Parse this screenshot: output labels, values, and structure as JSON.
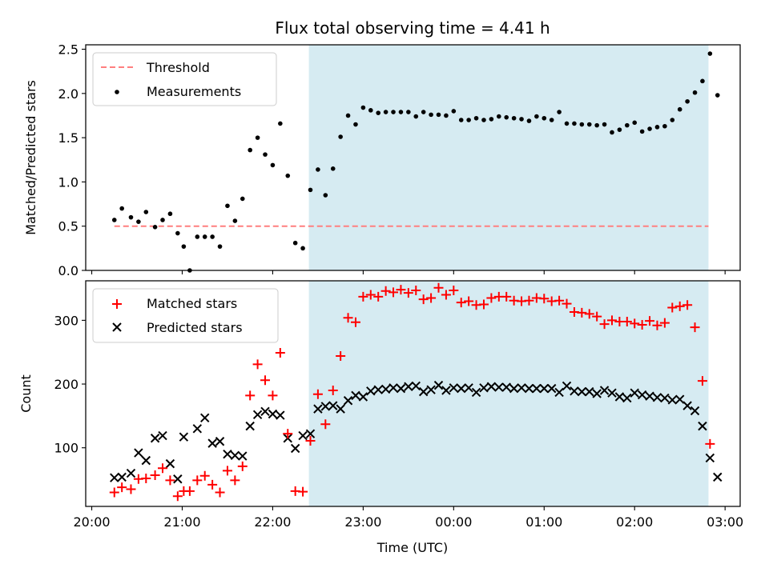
{
  "title": "Flux total observing time = 4.41 h",
  "x_axis": {
    "label": "Time (UTC)",
    "ticks": [
      "20:00",
      "21:00",
      "22:00",
      "23:00",
      "00:00",
      "01:00",
      "02:00",
      "03:00"
    ],
    "range": [
      "20:00",
      "03:10"
    ]
  },
  "top_panel": {
    "ylabel": "Matched/Predicted stars",
    "yticks": [
      "0.0",
      "0.5",
      "1.0",
      "1.5",
      "2.0",
      "2.5"
    ],
    "legend": {
      "placement": "upper-left",
      "threshold_label": "Threshold",
      "measurements_label": "Measurements"
    }
  },
  "bottom_panel": {
    "ylabel": "Count",
    "yticks": [
      "100",
      "200",
      "300"
    ],
    "legend": {
      "placement": "upper-left",
      "matched_label": "Matched stars",
      "predicted_label": "Predicted stars"
    }
  },
  "colors": {
    "threshold": "#ff7f7f",
    "measurements": "#000000",
    "matched": "#ff0000",
    "predicted": "#000000",
    "shade": "#add8e6"
  },
  "chart_data": [
    {
      "type": "scatter",
      "panel": "top",
      "ylabel": "Matched/Predicted stars",
      "ylim": [
        0,
        2.55
      ],
      "xlim": [
        "19:56",
        "03:10"
      ],
      "shaded_span": [
        "22:24",
        "02:49"
      ],
      "threshold": {
        "name": "Threshold",
        "value": 0.5,
        "x_range": [
          "20:15",
          "02:49"
        ],
        "style": "dashed"
      },
      "series": [
        {
          "name": "Measurements",
          "points": [
            [
              "20:15",
              0.57
            ],
            [
              "20:20",
              0.7
            ],
            [
              "20:26",
              0.6
            ],
            [
              "20:31",
              0.55
            ],
            [
              "20:36",
              0.66
            ],
            [
              "20:42",
              0.49
            ],
            [
              "20:47",
              0.57
            ],
            [
              "20:52",
              0.64
            ],
            [
              "20:57",
              0.42
            ],
            [
              "21:01",
              0.27
            ],
            [
              "21:05",
              0.0
            ],
            [
              "21:10",
              0.38
            ],
            [
              "21:15",
              0.38
            ],
            [
              "21:20",
              0.38
            ],
            [
              "21:25",
              0.27
            ],
            [
              "21:30",
              0.73
            ],
            [
              "21:35",
              0.56
            ],
            [
              "21:40",
              0.81
            ],
            [
              "21:45",
              1.36
            ],
            [
              "21:50",
              1.5
            ],
            [
              "21:55",
              1.31
            ],
            [
              "22:00",
              1.19
            ],
            [
              "22:05",
              1.66
            ],
            [
              "22:10",
              1.07
            ],
            [
              "22:15",
              0.31
            ],
            [
              "22:20",
              0.25
            ],
            [
              "22:25",
              0.91
            ],
            [
              "22:30",
              1.14
            ],
            [
              "22:35",
              0.85
            ],
            [
              "22:40",
              1.15
            ],
            [
              "22:45",
              1.51
            ],
            [
              "22:50",
              1.75
            ],
            [
              "22:55",
              1.65
            ],
            [
              "23:00",
              1.84
            ],
            [
              "23:05",
              1.81
            ],
            [
              "23:10",
              1.78
            ],
            [
              "23:15",
              1.79
            ],
            [
              "23:20",
              1.79
            ],
            [
              "23:25",
              1.79
            ],
            [
              "23:30",
              1.79
            ],
            [
              "23:35",
              1.74
            ],
            [
              "23:40",
              1.79
            ],
            [
              "23:45",
              1.76
            ],
            [
              "23:50",
              1.76
            ],
            [
              "23:55",
              1.75
            ],
            [
              "00:00",
              1.8
            ],
            [
              "00:05",
              1.7
            ],
            [
              "00:10",
              1.7
            ],
            [
              "00:15",
              1.72
            ],
            [
              "00:20",
              1.7
            ],
            [
              "00:25",
              1.71
            ],
            [
              "00:30",
              1.74
            ],
            [
              "00:35",
              1.73
            ],
            [
              "00:40",
              1.72
            ],
            [
              "00:45",
              1.71
            ],
            [
              "00:50",
              1.69
            ],
            [
              "00:55",
              1.74
            ],
            [
              "01:00",
              1.72
            ],
            [
              "01:05",
              1.7
            ],
            [
              "01:10",
              1.79
            ],
            [
              "01:15",
              1.66
            ],
            [
              "01:20",
              1.66
            ],
            [
              "01:25",
              1.65
            ],
            [
              "01:30",
              1.65
            ],
            [
              "01:35",
              1.64
            ],
            [
              "01:40",
              1.65
            ],
            [
              "01:45",
              1.56
            ],
            [
              "01:50",
              1.59
            ],
            [
              "01:55",
              1.64
            ],
            [
              "02:00",
              1.67
            ],
            [
              "02:05",
              1.57
            ],
            [
              "02:10",
              1.6
            ],
            [
              "02:15",
              1.62
            ],
            [
              "02:20",
              1.63
            ],
            [
              "02:25",
              1.7
            ],
            [
              "02:30",
              1.82
            ],
            [
              "02:35",
              1.91
            ],
            [
              "02:40",
              2.01
            ],
            [
              "02:45",
              2.14
            ],
            [
              "02:50",
              2.45
            ],
            [
              "02:55",
              1.98
            ]
          ]
        }
      ]
    },
    {
      "type": "scatter",
      "panel": "bottom",
      "ylabel": "Count",
      "ylim": [
        8,
        362
      ],
      "xlim": [
        "19:56",
        "03:10"
      ],
      "shaded_span": [
        "22:24",
        "02:49"
      ],
      "series": [
        {
          "name": "Matched stars",
          "marker": "plus",
          "points": [
            [
              "20:15",
              30
            ],
            [
              "20:20",
              38
            ],
            [
              "20:26",
              35
            ],
            [
              "20:31",
              51
            ],
            [
              "20:36",
              52
            ],
            [
              "20:42",
              57
            ],
            [
              "20:47",
              68
            ],
            [
              "20:52",
              49
            ],
            [
              "20:57",
              24
            ],
            [
              "21:01",
              32
            ],
            [
              "21:05",
              32
            ],
            [
              "21:10",
              49
            ],
            [
              "21:15",
              56
            ],
            [
              "21:20",
              42
            ],
            [
              "21:25",
              30
            ],
            [
              "21:30",
              64
            ],
            [
              "21:35",
              49
            ],
            [
              "21:40",
              71
            ],
            [
              "21:45",
              182
            ],
            [
              "21:50",
              231
            ],
            [
              "21:55",
              206
            ],
            [
              "22:00",
              182
            ],
            [
              "22:05",
              249
            ],
            [
              "22:10",
              122
            ],
            [
              "22:15",
              32
            ],
            [
              "22:20",
              31
            ],
            [
              "22:25",
              111
            ],
            [
              "22:30",
              184
            ],
            [
              "22:35",
              137
            ],
            [
              "22:40",
              190
            ],
            [
              "22:45",
              244
            ],
            [
              "22:50",
              304
            ],
            [
              "22:55",
              297
            ],
            [
              "23:00",
              337
            ],
            [
              "23:05",
              340
            ],
            [
              "23:10",
              337
            ],
            [
              "23:15",
              346
            ],
            [
              "23:20",
              344
            ],
            [
              "23:25",
              348
            ],
            [
              "23:30",
              343
            ],
            [
              "23:35",
              347
            ],
            [
              "23:40",
              333
            ],
            [
              "23:45",
              335
            ],
            [
              "23:50",
              351
            ],
            [
              "23:55",
              340
            ],
            [
              "00:00",
              347
            ],
            [
              "00:05",
              328
            ],
            [
              "00:10",
              330
            ],
            [
              "00:15",
              324
            ],
            [
              "00:20",
              325
            ],
            [
              "00:25",
              335
            ],
            [
              "00:30",
              337
            ],
            [
              "00:35",
              337
            ],
            [
              "00:40",
              331
            ],
            [
              "00:45",
              330
            ],
            [
              "00:50",
              331
            ],
            [
              "00:55",
              335
            ],
            [
              "01:00",
              334
            ],
            [
              "01:05",
              330
            ],
            [
              "01:10",
              331
            ],
            [
              "01:15",
              326
            ],
            [
              "01:20",
              313
            ],
            [
              "01:25",
              312
            ],
            [
              "01:30",
              310
            ],
            [
              "01:35",
              306
            ],
            [
              "01:40",
              294
            ],
            [
              "01:45",
              300
            ],
            [
              "01:50",
              298
            ],
            [
              "01:55",
              298
            ],
            [
              "02:00",
              295
            ],
            [
              "02:05",
              293
            ],
            [
              "02:10",
              299
            ],
            [
              "02:15",
              292
            ],
            [
              "02:20",
              296
            ],
            [
              "02:25",
              320
            ],
            [
              "02:30",
              322
            ],
            [
              "02:35",
              324
            ],
            [
              "02:40",
              289
            ],
            [
              "02:45",
              205
            ],
            [
              "02:50",
              106
            ]
          ]
        },
        {
          "name": "Predicted stars",
          "marker": "x",
          "points": [
            [
              "20:15",
              53
            ],
            [
              "20:20",
              54
            ],
            [
              "20:26",
              60
            ],
            [
              "20:31",
              92
            ],
            [
              "20:36",
              80
            ],
            [
              "20:42",
              115
            ],
            [
              "20:47",
              119
            ],
            [
              "20:52",
              75
            ],
            [
              "20:57",
              51
            ],
            [
              "21:01",
              117
            ],
            [
              "21:10",
              130
            ],
            [
              "21:15",
              147
            ],
            [
              "21:20",
              107
            ],
            [
              "21:25",
              110
            ],
            [
              "21:30",
              90
            ],
            [
              "21:35",
              88
            ],
            [
              "21:40",
              87
            ],
            [
              "21:45",
              134
            ],
            [
              "21:50",
              152
            ],
            [
              "21:55",
              157
            ],
            [
              "22:00",
              153
            ],
            [
              "22:05",
              151
            ],
            [
              "22:10",
              115
            ],
            [
              "22:15",
              99
            ],
            [
              "22:20",
              119
            ],
            [
              "22:25",
              122
            ],
            [
              "22:30",
              161
            ],
            [
              "22:35",
              165
            ],
            [
              "22:40",
              166
            ],
            [
              "22:45",
              161
            ],
            [
              "22:50",
              174
            ],
            [
              "22:55",
              182
            ],
            [
              "23:00",
              180
            ],
            [
              "23:05",
              189
            ],
            [
              "23:10",
              191
            ],
            [
              "23:15",
              192
            ],
            [
              "23:20",
              194
            ],
            [
              "23:25",
              193
            ],
            [
              "23:30",
              196
            ],
            [
              "23:35",
              197
            ],
            [
              "23:40",
              188
            ],
            [
              "23:45",
              191
            ],
            [
              "23:50",
              198
            ],
            [
              "23:55",
              190
            ],
            [
              "00:00",
              194
            ],
            [
              "00:05",
              193
            ],
            [
              "00:10",
              194
            ],
            [
              "00:15",
              187
            ],
            [
              "00:20",
              194
            ],
            [
              "00:25",
              196
            ],
            [
              "00:30",
              195
            ],
            [
              "00:35",
              195
            ],
            [
              "00:40",
              193
            ],
            [
              "00:45",
              194
            ],
            [
              "00:50",
              193
            ],
            [
              "00:55",
              193
            ],
            [
              "01:00",
              193
            ],
            [
              "01:05",
              193
            ],
            [
              "01:10",
              187
            ],
            [
              "01:15",
              197
            ],
            [
              "01:20",
              189
            ],
            [
              "01:25",
              188
            ],
            [
              "01:30",
              188
            ],
            [
              "01:35",
              185
            ],
            [
              "01:40",
              190
            ],
            [
              "01:45",
              186
            ],
            [
              "01:50",
              180
            ],
            [
              "01:55",
              178
            ],
            [
              "02:00",
              186
            ],
            [
              "02:05",
              183
            ],
            [
              "02:10",
              181
            ],
            [
              "02:15",
              179
            ],
            [
              "02:20",
              178
            ],
            [
              "02:25",
              175
            ],
            [
              "02:30",
              176
            ],
            [
              "02:35",
              166
            ],
            [
              "02:40",
              158
            ],
            [
              "02:45",
              134
            ],
            [
              "02:50",
              84
            ],
            [
              "02:55",
              54
            ]
          ]
        }
      ]
    }
  ]
}
